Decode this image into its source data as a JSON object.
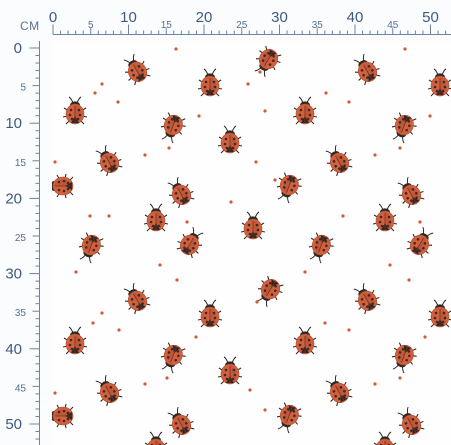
{
  "ruler": {
    "unit": "CM",
    "top_labels": [
      {
        "value": 0,
        "text": "0",
        "major": true
      },
      {
        "value": 5,
        "text": "5",
        "major": false
      },
      {
        "value": 10,
        "text": "10",
        "major": true
      },
      {
        "value": 15,
        "text": "15",
        "major": false
      },
      {
        "value": 20,
        "text": "20",
        "major": true
      },
      {
        "value": 25,
        "text": "25",
        "major": false
      },
      {
        "value": 30,
        "text": "30",
        "major": true
      },
      {
        "value": 35,
        "text": "35",
        "major": false
      },
      {
        "value": 40,
        "text": "40",
        "major": true
      },
      {
        "value": 45,
        "text": "45",
        "major": false
      },
      {
        "value": 50,
        "text": "50",
        "major": true
      }
    ],
    "left_labels": [
      {
        "value": 0,
        "text": "0",
        "major": true
      },
      {
        "value": 5,
        "text": "5",
        "major": false
      },
      {
        "value": 10,
        "text": "10",
        "major": true
      },
      {
        "value": 15,
        "text": "15",
        "major": false
      },
      {
        "value": 20,
        "text": "20",
        "major": true
      },
      {
        "value": 25,
        "text": "25",
        "major": false
      },
      {
        "value": 30,
        "text": "30",
        "major": true
      },
      {
        "value": 35,
        "text": "35",
        "major": false
      },
      {
        "value": 40,
        "text": "40",
        "major": true
      },
      {
        "value": 45,
        "text": "45",
        "major": false
      },
      {
        "value": 50,
        "text": "50",
        "major": true
      }
    ]
  },
  "pattern": {
    "motif": "ladybug-icon",
    "ladybug_color": "#d0603e",
    "spot_color": "#3b2a26",
    "head_color": "#2f2926",
    "dot_color": "#cf5c36",
    "ruler_color": "#5b7190",
    "background": "#ffffff"
  }
}
